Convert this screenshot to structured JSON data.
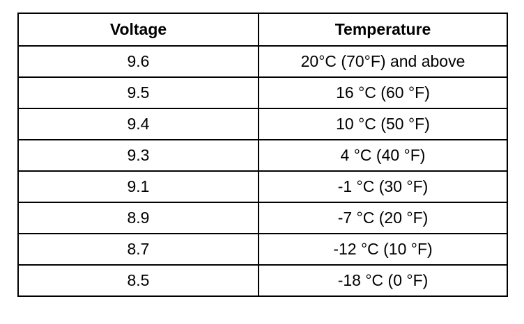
{
  "table": {
    "header": [
      "Voltage",
      "Temperature"
    ],
    "rows": [
      [
        "9.6",
        "20°C (70°F) and above"
      ],
      [
        "9.5",
        "16 °C (60 °F)"
      ],
      [
        "9.4",
        "10 °C (50 °F)"
      ],
      [
        "9.3",
        "4 °C (40 °F)"
      ],
      [
        "9.1",
        "-1 °C (30 °F)"
      ],
      [
        "8.9",
        "-7 °C (20 °F)"
      ],
      [
        "8.7",
        "-12 °C (10 °F)"
      ],
      [
        "8.5",
        "-18 °C (0 °F)"
      ]
    ]
  }
}
